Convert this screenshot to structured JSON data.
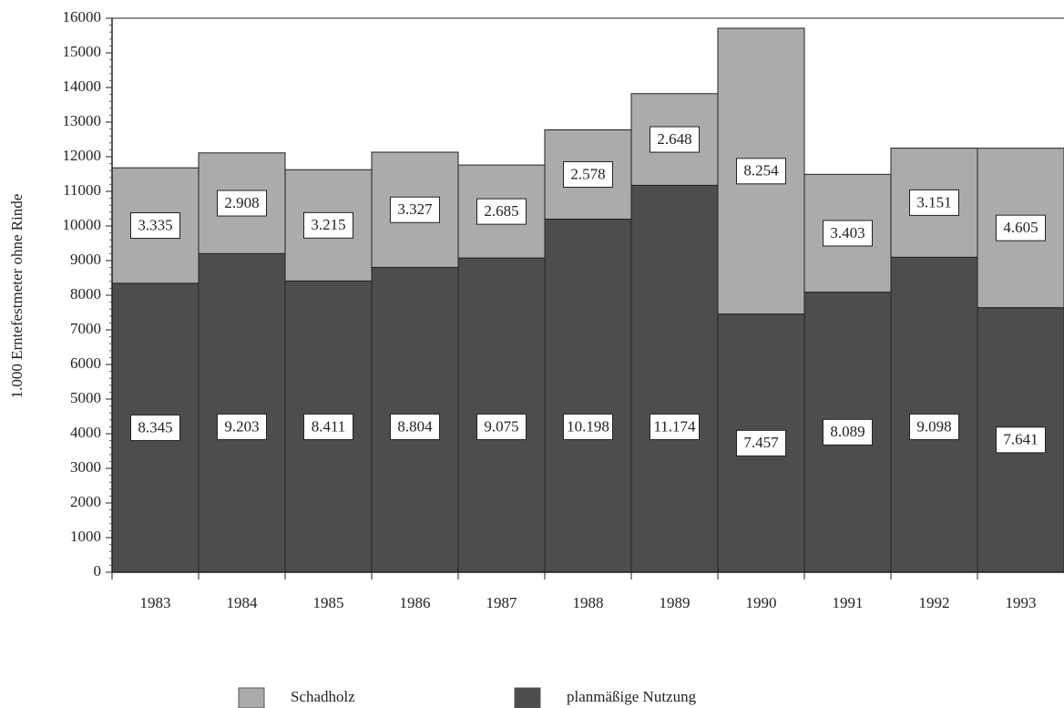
{
  "chart_data": {
    "type": "bar",
    "stacked": true,
    "ylabel": "1.000 Erntefestmeter ohne Rinde",
    "categories": [
      "1983",
      "1984",
      "1985",
      "1986",
      "1987",
      "1988",
      "1989",
      "1990",
      "1991",
      "1992",
      "1993"
    ],
    "series": [
      {
        "name": "planmäßige Nutzung",
        "color": "#4d4d4d",
        "values": [
          8345,
          9203,
          8411,
          8804,
          9075,
          10198,
          11174,
          7457,
          8089,
          9098,
          7641
        ],
        "value_labels": [
          "8.345",
          "9.203",
          "8.411",
          "8.804",
          "9.075",
          "10.198",
          "11.174",
          "7.457",
          "8.089",
          "9.098",
          "7.641"
        ]
      },
      {
        "name": "Schadholz",
        "color": "#ababab",
        "values": [
          3335,
          2908,
          3215,
          3327,
          2685,
          2578,
          2648,
          8254,
          3403,
          3151,
          4605
        ],
        "value_labels": [
          "3.335",
          "2.908",
          "3.215",
          "3.327",
          "2.685",
          "2.578",
          "2.648",
          "8.254",
          "3.403",
          "3.151",
          "4.605"
        ]
      }
    ],
    "ylim": [
      0,
      16000
    ],
    "yticks": [
      0,
      1000,
      2000,
      3000,
      4000,
      5000,
      6000,
      7000,
      8000,
      9000,
      10000,
      11000,
      12000,
      13000,
      14000,
      15000,
      16000
    ]
  }
}
